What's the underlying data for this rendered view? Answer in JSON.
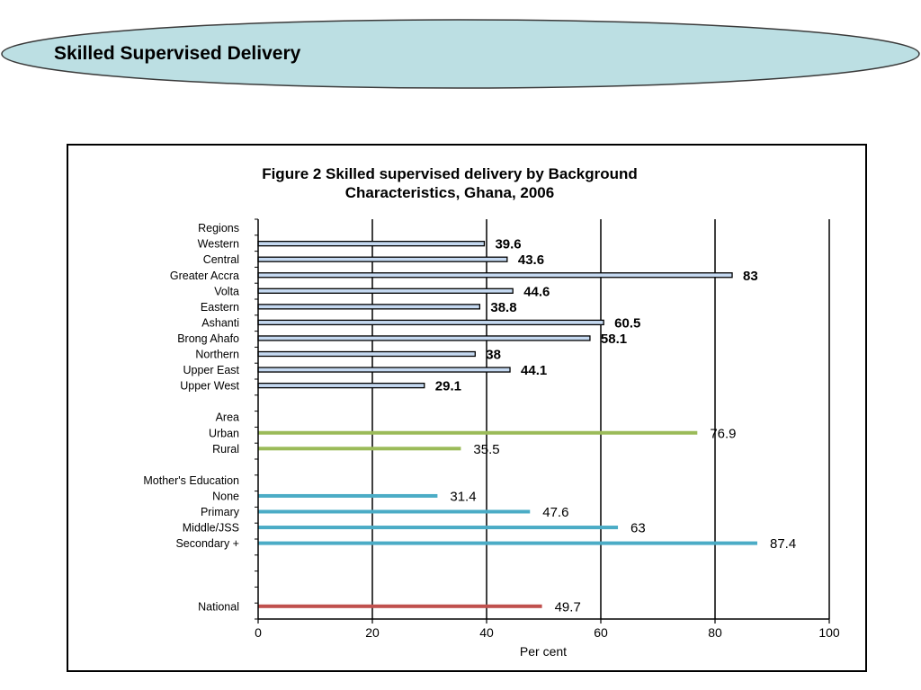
{
  "slide": {
    "title": "Skilled Supervised Delivery"
  },
  "colors": {
    "banner_fill": "#bcdfe3",
    "regions_bar": "#c5d9f1",
    "area_bar": "#9bbb59",
    "education_bar": "#4bacc6",
    "national_bar": "#c0504d"
  },
  "chart_data": {
    "type": "bar",
    "orientation": "horizontal",
    "title": [
      "Figure 2  Skilled supervised  delivery  by  Background",
      "Characteristics,  Ghana,  2006"
    ],
    "xlabel": "Per cent",
    "ylabel": "",
    "xlim": [
      0,
      100
    ],
    "xticks": [
      "0",
      "20",
      "40",
      "60",
      "80",
      "100"
    ],
    "grid": "vertical",
    "legend": "none",
    "groups": [
      {
        "heading": "Regions",
        "color": "#c5d9f1",
        "bold_labels": true,
        "outlined": true,
        "categories": [
          "Western",
          "Central",
          "Greater Accra",
          "Volta",
          "Eastern",
          "Ashanti",
          "Brong Ahafo",
          "Northern",
          "Upper East",
          "Upper West"
        ],
        "values": [
          39.6,
          43.6,
          83,
          44.6,
          38.8,
          60.5,
          58.1,
          38,
          44.1,
          29.1
        ],
        "labels": [
          "39.6",
          "43.6",
          "83",
          "44.6",
          "38.8",
          "60.5",
          "58.1",
          "38",
          "44.1",
          "29.1"
        ]
      },
      {
        "heading": "Area",
        "color": "#9bbb59",
        "bold_labels": false,
        "outlined": false,
        "categories": [
          "Urban",
          "Rural"
        ],
        "values": [
          76.9,
          35.5
        ],
        "labels": [
          "76.9",
          "35.5"
        ]
      },
      {
        "heading": "Mother's Education",
        "color": "#4bacc6",
        "bold_labels": false,
        "outlined": false,
        "categories": [
          "None",
          "Primary",
          "Middle/JSS",
          "Secondary +"
        ],
        "values": [
          31.4,
          47.6,
          63,
          87.4
        ],
        "labels": [
          "31.4",
          "47.6",
          "63",
          "87.4"
        ]
      },
      {
        "heading": "",
        "color": "#c0504d",
        "bold_labels": false,
        "outlined": false,
        "categories": [
          "National"
        ],
        "values": [
          49.7
        ],
        "labels": [
          "49.7"
        ]
      }
    ]
  }
}
